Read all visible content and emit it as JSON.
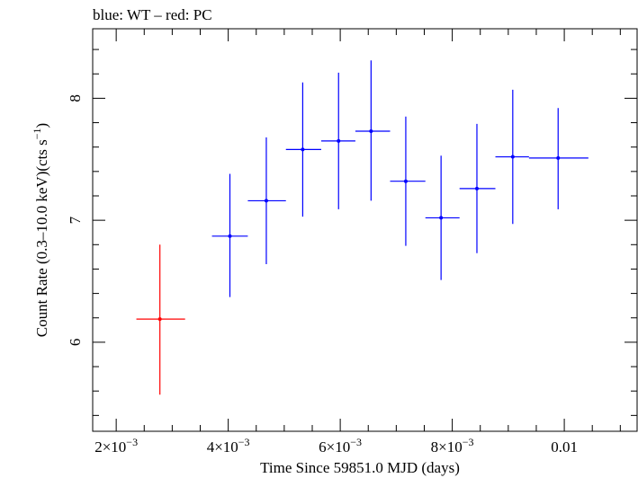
{
  "chart_data": {
    "type": "scatter",
    "title": "blue: WT – red: PC",
    "xlabel": "Time Since 59851.0 MJD (days)",
    "ylabel_main": "Count Rate (0.3–10.0 keV)(cts s",
    "ylabel_sup": "−1",
    "ylabel_close": ")",
    "xlim": [
      0.00158,
      0.0113
    ],
    "ylim": [
      5.27,
      8.57
    ],
    "x_ticks": [
      {
        "value": 0.002,
        "mantissa": "2×10",
        "exp": "−3"
      },
      {
        "value": 0.004,
        "mantissa": "4×10",
        "exp": "−3"
      },
      {
        "value": 0.006,
        "mantissa": "6×10",
        "exp": "−3"
      },
      {
        "value": 0.008,
        "mantissa": "8×10",
        "exp": "−3"
      },
      {
        "value": 0.01,
        "mantissa": "0.01",
        "exp": ""
      }
    ],
    "y_ticks": [
      {
        "value": 6,
        "label": "6"
      },
      {
        "value": 7,
        "label": "7"
      },
      {
        "value": 8,
        "label": "8"
      }
    ],
    "series": [
      {
        "color": "#ff0000",
        "points": [
          {
            "x": 0.00278,
            "xlo": 0.00236,
            "xhi": 0.00323,
            "y": 6.19,
            "ylo": 5.57,
            "yhi": 6.8
          }
        ]
      },
      {
        "color": "#0000ff",
        "points": [
          {
            "x": 0.00403,
            "xlo": 0.00371,
            "xhi": 0.00435,
            "y": 6.87,
            "ylo": 6.37,
            "yhi": 7.38
          },
          {
            "x": 0.00468,
            "xlo": 0.00435,
            "xhi": 0.00503,
            "y": 7.16,
            "ylo": 6.64,
            "yhi": 7.68
          },
          {
            "x": 0.00533,
            "xlo": 0.00503,
            "xhi": 0.00566,
            "y": 7.58,
            "ylo": 7.03,
            "yhi": 8.13
          },
          {
            "x": 0.00597,
            "xlo": 0.00566,
            "xhi": 0.00627,
            "y": 7.65,
            "ylo": 7.09,
            "yhi": 8.21
          },
          {
            "x": 0.00655,
            "xlo": 0.00627,
            "xhi": 0.00689,
            "y": 7.73,
            "ylo": 7.16,
            "yhi": 8.31
          },
          {
            "x": 0.00717,
            "xlo": 0.00689,
            "xhi": 0.00752,
            "y": 7.32,
            "ylo": 6.79,
            "yhi": 7.85
          },
          {
            "x": 0.0078,
            "xlo": 0.00752,
            "xhi": 0.00813,
            "y": 7.02,
            "ylo": 6.51,
            "yhi": 7.53
          },
          {
            "x": 0.00844,
            "xlo": 0.00813,
            "xhi": 0.00877,
            "y": 7.26,
            "ylo": 6.73,
            "yhi": 7.79
          },
          {
            "x": 0.00908,
            "xlo": 0.00877,
            "xhi": 0.00937,
            "y": 7.52,
            "ylo": 6.97,
            "yhi": 8.07
          },
          {
            "x": 0.00989,
            "xlo": 0.00937,
            "xhi": 0.01043,
            "y": 7.51,
            "ylo": 7.09,
            "yhi": 7.92
          }
        ]
      }
    ]
  }
}
